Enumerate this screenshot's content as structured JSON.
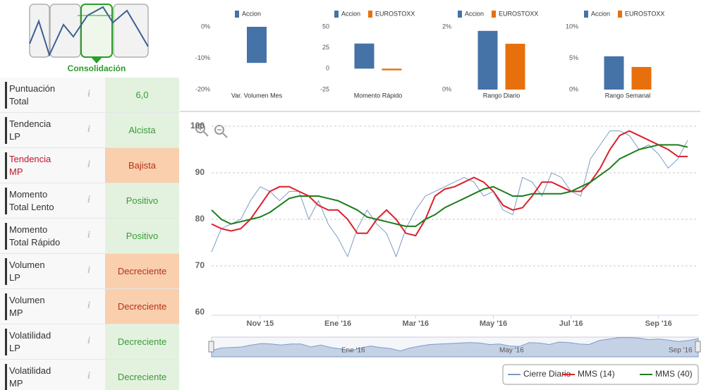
{
  "widget": {
    "label": "Consolidación"
  },
  "indicators": [
    {
      "label": "Puntuación\nTotal",
      "value": "6,0",
      "color": "#e3f2de",
      "text_color": "#3a9a3a",
      "label_color": "#333333"
    },
    {
      "label": "Tendencia\nLP",
      "value": "Alcista",
      "color": "#e3f2de",
      "text_color": "#3a9a3a",
      "label_color": "#333333"
    },
    {
      "label": "Tendencia\nMP",
      "value": "Bajista",
      "color": "#f9cfad",
      "text_color": "#b4341e",
      "label_color": "#c0152a"
    },
    {
      "label": "Momento\nTotal Lento",
      "value": "Positivo",
      "color": "#e3f2de",
      "text_color": "#3a9a3a",
      "label_color": "#333333"
    },
    {
      "label": "Momento\nTotal Rápido",
      "value": "Positivo",
      "color": "#e3f2de",
      "text_color": "#3a9a3a",
      "label_color": "#333333"
    },
    {
      "label": "Volumen\nLP",
      "value": "Decreciente",
      "color": "#f9cfad",
      "text_color": "#b4341e",
      "label_color": "#333333"
    },
    {
      "label": "Volumen\nMP",
      "value": "Decreciente",
      "color": "#f9cfad",
      "text_color": "#b4341e",
      "label_color": "#333333"
    },
    {
      "label": "Volatilidad\nLP",
      "value": "Decreciente",
      "color": "#e3f2de",
      "text_color": "#3a9a3a",
      "label_color": "#333333"
    },
    {
      "label": "Volatilidad\nMP",
      "value": "Decreciente",
      "color": "#e3f2de",
      "text_color": "#3a9a3a",
      "label_color": "#333333"
    }
  ],
  "chart_data": [
    {
      "type": "bar",
      "x_label": "Var. Volumen Mes",
      "series": [
        {
          "name": "Accion",
          "color": "#4572a7",
          "values": [
            -11.5
          ]
        }
      ],
      "ylim": [
        -20,
        0
      ],
      "yticks": [
        {
          "value": 0,
          "label": "0%"
        },
        {
          "value": -10,
          "label": "-10%"
        },
        {
          "value": -20,
          "label": "-20%"
        }
      ]
    },
    {
      "type": "bar",
      "x_label": "Momento Rápido",
      "series": [
        {
          "name": "Accion",
          "color": "#4572a7",
          "values": [
            30
          ]
        },
        {
          "name": "EUROSTOXX",
          "color": "#e8700c",
          "values": [
            -2
          ]
        }
      ],
      "ylim": [
        -25,
        50
      ],
      "yticks": [
        50,
        25,
        0,
        -25
      ]
    },
    {
      "type": "bar",
      "x_label": "Rango Diario",
      "series": [
        {
          "name": "Accion",
          "color": "#4572a7",
          "values": [
            1.87
          ]
        },
        {
          "name": "EUROSTOXX",
          "color": "#e8700c",
          "values": [
            1.46
          ]
        }
      ],
      "ylim": [
        0,
        2
      ],
      "yticks": [
        {
          "value": 2,
          "label": "2%"
        },
        {
          "value": 0,
          "label": "0%"
        }
      ]
    },
    {
      "type": "bar",
      "x_label": "Rango Semanal",
      "series": [
        {
          "name": "Accion",
          "color": "#4572a7",
          "values": [
            5.3
          ]
        },
        {
          "name": "EUROSTOXX",
          "color": "#e8700c",
          "values": [
            3.6
          ]
        }
      ],
      "ylim": [
        0,
        10
      ],
      "yticks": [
        {
          "value": 10,
          "label": "10%"
        },
        {
          "value": 5,
          "label": "5%"
        },
        {
          "value": 0,
          "label": "0%"
        }
      ]
    },
    {
      "type": "line",
      "grid": true,
      "legend": "bottom-right",
      "categories": [
        null,
        null,
        null,
        null,
        null,
        "Nov '15",
        null,
        null,
        null,
        null,
        null,
        null,
        null,
        "Ene '16",
        null,
        null,
        null,
        null,
        null,
        null,
        null,
        "Mar '16",
        null,
        null,
        null,
        null,
        null,
        null,
        null,
        "May '16",
        null,
        null,
        null,
        null,
        null,
        null,
        null,
        "Jul '16",
        null,
        null,
        null,
        null,
        null,
        null,
        null,
        null,
        "Sep '16",
        null,
        null,
        null
      ],
      "ylim": [
        60,
        100
      ],
      "yticks": [
        60,
        70,
        80,
        90,
        100
      ],
      "series": [
        {
          "name": "Cierre Diario",
          "color": "#7b9cc4",
          "values": [
            73,
            78,
            79,
            80,
            84,
            87,
            86,
            84,
            86,
            86,
            80,
            84,
            79,
            76,
            72,
            78,
            82,
            79,
            77,
            72,
            78,
            82,
            85,
            86,
            87,
            88,
            89,
            88,
            85,
            86,
            82,
            81,
            89,
            88,
            85,
            90,
            89,
            86,
            85,
            93,
            96,
            99,
            99,
            98,
            95,
            96,
            94,
            91,
            93,
            97
          ]
        },
        {
          "name": "MMS (14)",
          "color": "#dd1f2a",
          "values": [
            79,
            78,
            77.5,
            78,
            80,
            83,
            86,
            87,
            87,
            86,
            85,
            83,
            82,
            82,
            80,
            77,
            77,
            80,
            82,
            80,
            77,
            76.5,
            80,
            85,
            86.5,
            87,
            88,
            89,
            88,
            86,
            83,
            82,
            82.5,
            85,
            88,
            88,
            87,
            86,
            86,
            88,
            91,
            95,
            98,
            99,
            98,
            97,
            96,
            95,
            93.5,
            93.5
          ]
        },
        {
          "name": "MMS (40)",
          "color": "#1c7d1c",
          "values": [
            82,
            80,
            79,
            79.5,
            80,
            80.5,
            81.5,
            83,
            84.5,
            85,
            85,
            85,
            84.5,
            84,
            83,
            82,
            80.5,
            80,
            79.5,
            79,
            78.5,
            78.5,
            80,
            81,
            82.5,
            83.5,
            84.5,
            85.5,
            86.5,
            87,
            86,
            85,
            85,
            85.5,
            85.5,
            85.5,
            85.5,
            86,
            87,
            88,
            89.5,
            91,
            93,
            94,
            95,
            95.5,
            96,
            96,
            96,
            95.5
          ]
        }
      ]
    }
  ],
  "navigator": {
    "labels": [
      "Ene '16",
      "May '16",
      "Sep '16"
    ]
  }
}
